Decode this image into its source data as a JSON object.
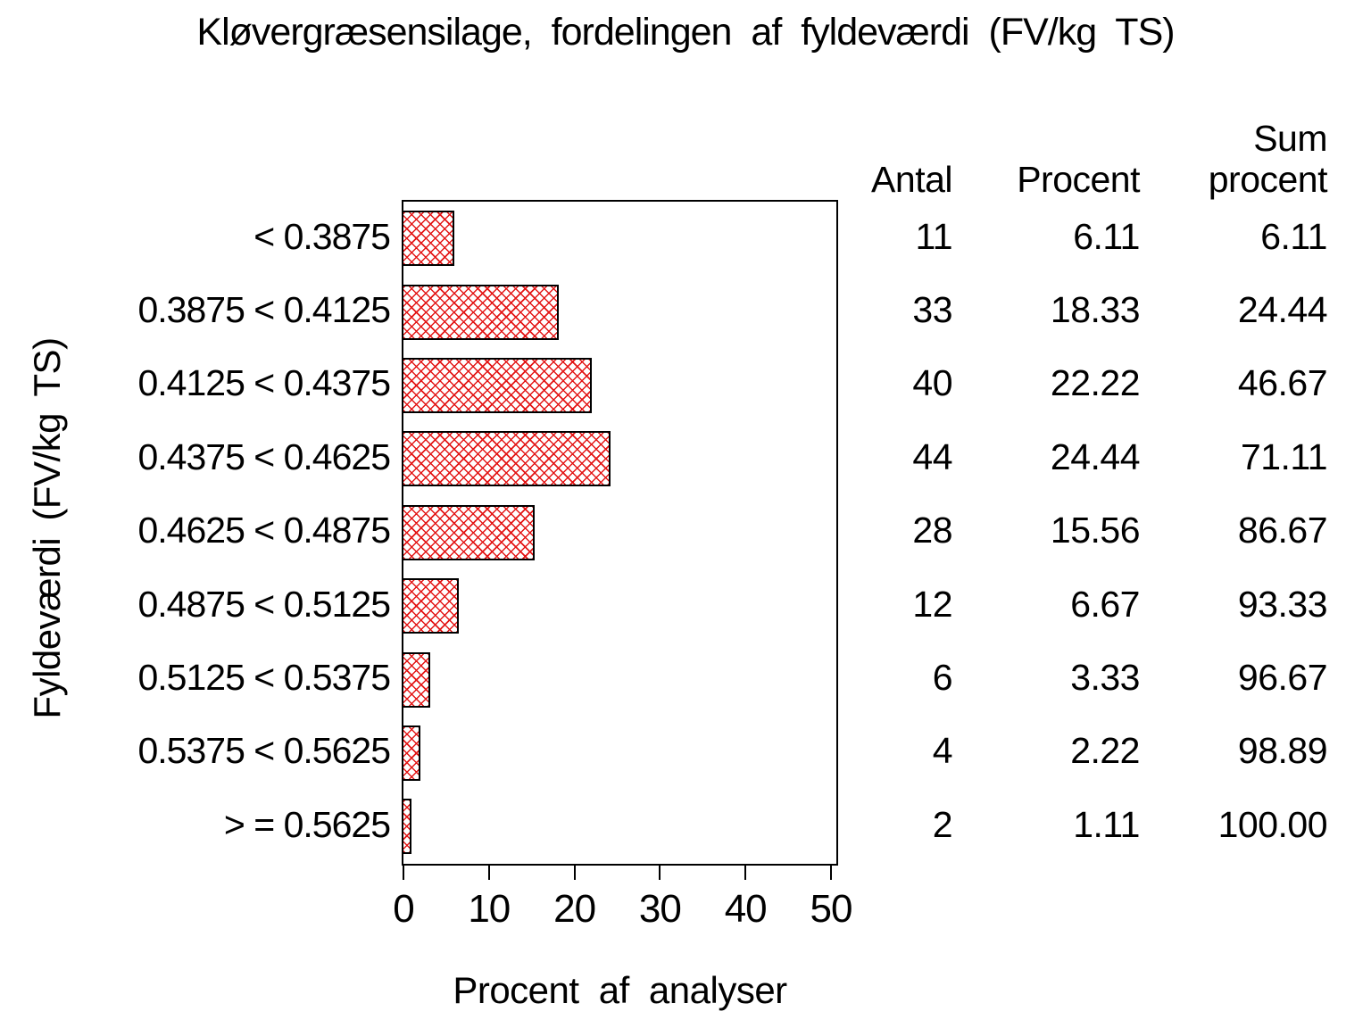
{
  "title": "Kløvergræsensilage, fordelingen af fyldeværdi (FV/kg TS)",
  "x_axis": {
    "label": "Procent af analyser",
    "ticks": [
      0,
      10,
      20,
      30,
      40,
      50
    ]
  },
  "y_axis": {
    "label": "Fyldeværdi (FV/kg TS)"
  },
  "table_header": {
    "antal": "Antal",
    "procent": "Procent",
    "sum_line1": "Sum",
    "sum_line2": "procent"
  },
  "chart_data": {
    "type": "bar",
    "orientation": "horizontal",
    "title": "Kløvergræsensilage, fordelingen af fyldeværdi (FV/kg TS)",
    "xlabel": "Procent af analyser",
    "ylabel": "Fyldeværdi (FV/kg TS)",
    "xlim": [
      0,
      51
    ],
    "xticks": [
      0,
      10,
      20,
      30,
      40,
      50
    ],
    "grid": false,
    "legend": "none",
    "categories": [
      "< 0.3875",
      "0.3875 < 0.4125",
      "0.4125 < 0.4375",
      "0.4375 < 0.4625",
      "0.4625 < 0.4875",
      "0.4875 < 0.5125",
      "0.5125 < 0.5375",
      "0.5375 < 0.5625",
      "> = 0.5625"
    ],
    "series": [
      {
        "name": "Procent",
        "values": [
          6.11,
          18.33,
          22.22,
          24.44,
          15.56,
          6.67,
          3.33,
          2.22,
          1.11
        ]
      },
      {
        "name": "Antal",
        "values": [
          11,
          33,
          40,
          44,
          28,
          12,
          6,
          4,
          2
        ]
      },
      {
        "name": "Sum procent",
        "values": [
          6.11,
          24.44,
          46.67,
          71.11,
          86.67,
          93.33,
          96.67,
          98.89,
          100.0
        ]
      }
    ],
    "rows": [
      {
        "category": "< 0.3875",
        "antal": "11",
        "procent": "6.11",
        "sum_procent": "6.11",
        "value": 6.11
      },
      {
        "category": "0.3875 < 0.4125",
        "antal": "33",
        "procent": "18.33",
        "sum_procent": "24.44",
        "value": 18.33
      },
      {
        "category": "0.4125 < 0.4375",
        "antal": "40",
        "procent": "22.22",
        "sum_procent": "46.67",
        "value": 22.22
      },
      {
        "category": "0.4375 < 0.4625",
        "antal": "44",
        "procent": "24.44",
        "sum_procent": "71.11",
        "value": 24.44
      },
      {
        "category": "0.4625 < 0.4875",
        "antal": "28",
        "procent": "15.56",
        "sum_procent": "86.67",
        "value": 15.56
      },
      {
        "category": "0.4875 < 0.5125",
        "antal": "12",
        "procent": "6.67",
        "sum_procent": "93.33",
        "value": 6.67
      },
      {
        "category": "0.5125 < 0.5375",
        "antal": "6",
        "procent": "3.33",
        "sum_procent": "96.67",
        "value": 3.33
      },
      {
        "category": "0.5375 < 0.5625",
        "antal": "4",
        "procent": "2.22",
        "sum_procent": "98.89",
        "value": 2.22
      },
      {
        "category": "> = 0.5625",
        "antal": "2",
        "procent": "1.11",
        "sum_procent": "100.00",
        "value": 1.11
      }
    ]
  },
  "colors": {
    "hatch": "#e31616",
    "bar_border": "#000000",
    "frame": "#000000",
    "text": "#000000",
    "background": "#ffffff"
  }
}
